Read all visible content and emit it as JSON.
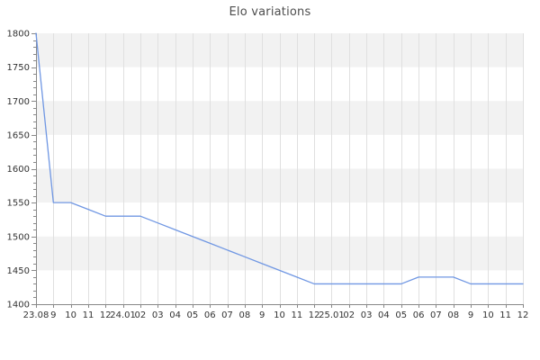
{
  "page": {
    "background_color": "#ffffff"
  },
  "chart_data": {
    "type": "line",
    "title": "Elo variations",
    "xlabel": "",
    "ylabel": "",
    "categories": [
      "23.08",
      "9",
      "10",
      "11",
      "12",
      "24.01",
      "02",
      "03",
      "04",
      "05",
      "06",
      "07",
      "08",
      "9",
      "10",
      "11",
      "12",
      "25.01",
      "02",
      "03",
      "04",
      "05",
      "06",
      "07",
      "08",
      "9",
      "10",
      "11",
      "12"
    ],
    "series": [
      {
        "name": "Elo",
        "values": [
          1800,
          1550,
          1550,
          1540,
          1530,
          1530,
          1530,
          1520,
          1510,
          1500,
          1490,
          1480,
          1470,
          1460,
          1450,
          1440,
          1430,
          1430,
          1430,
          1430,
          1430,
          1430,
          1440,
          1440,
          1440,
          1430,
          1430,
          1430,
          1430
        ]
      }
    ],
    "ylim": [
      1400,
      1800
    ],
    "y_ticks": [
      1400,
      1450,
      1500,
      1550,
      1600,
      1650,
      1700,
      1750,
      1800
    ],
    "y_tick_step": 50,
    "y_minor_tick_step": 10,
    "grid": true,
    "legend_position": "none",
    "band_fill_alternating": true,
    "colors": {
      "line": "#7097e3",
      "band": "#f2f2f2",
      "grid": "#e0e0e0",
      "axis": "#888888",
      "tick_label": "#333333",
      "title": "#4d4d4d",
      "background": "#ffffff"
    }
  }
}
